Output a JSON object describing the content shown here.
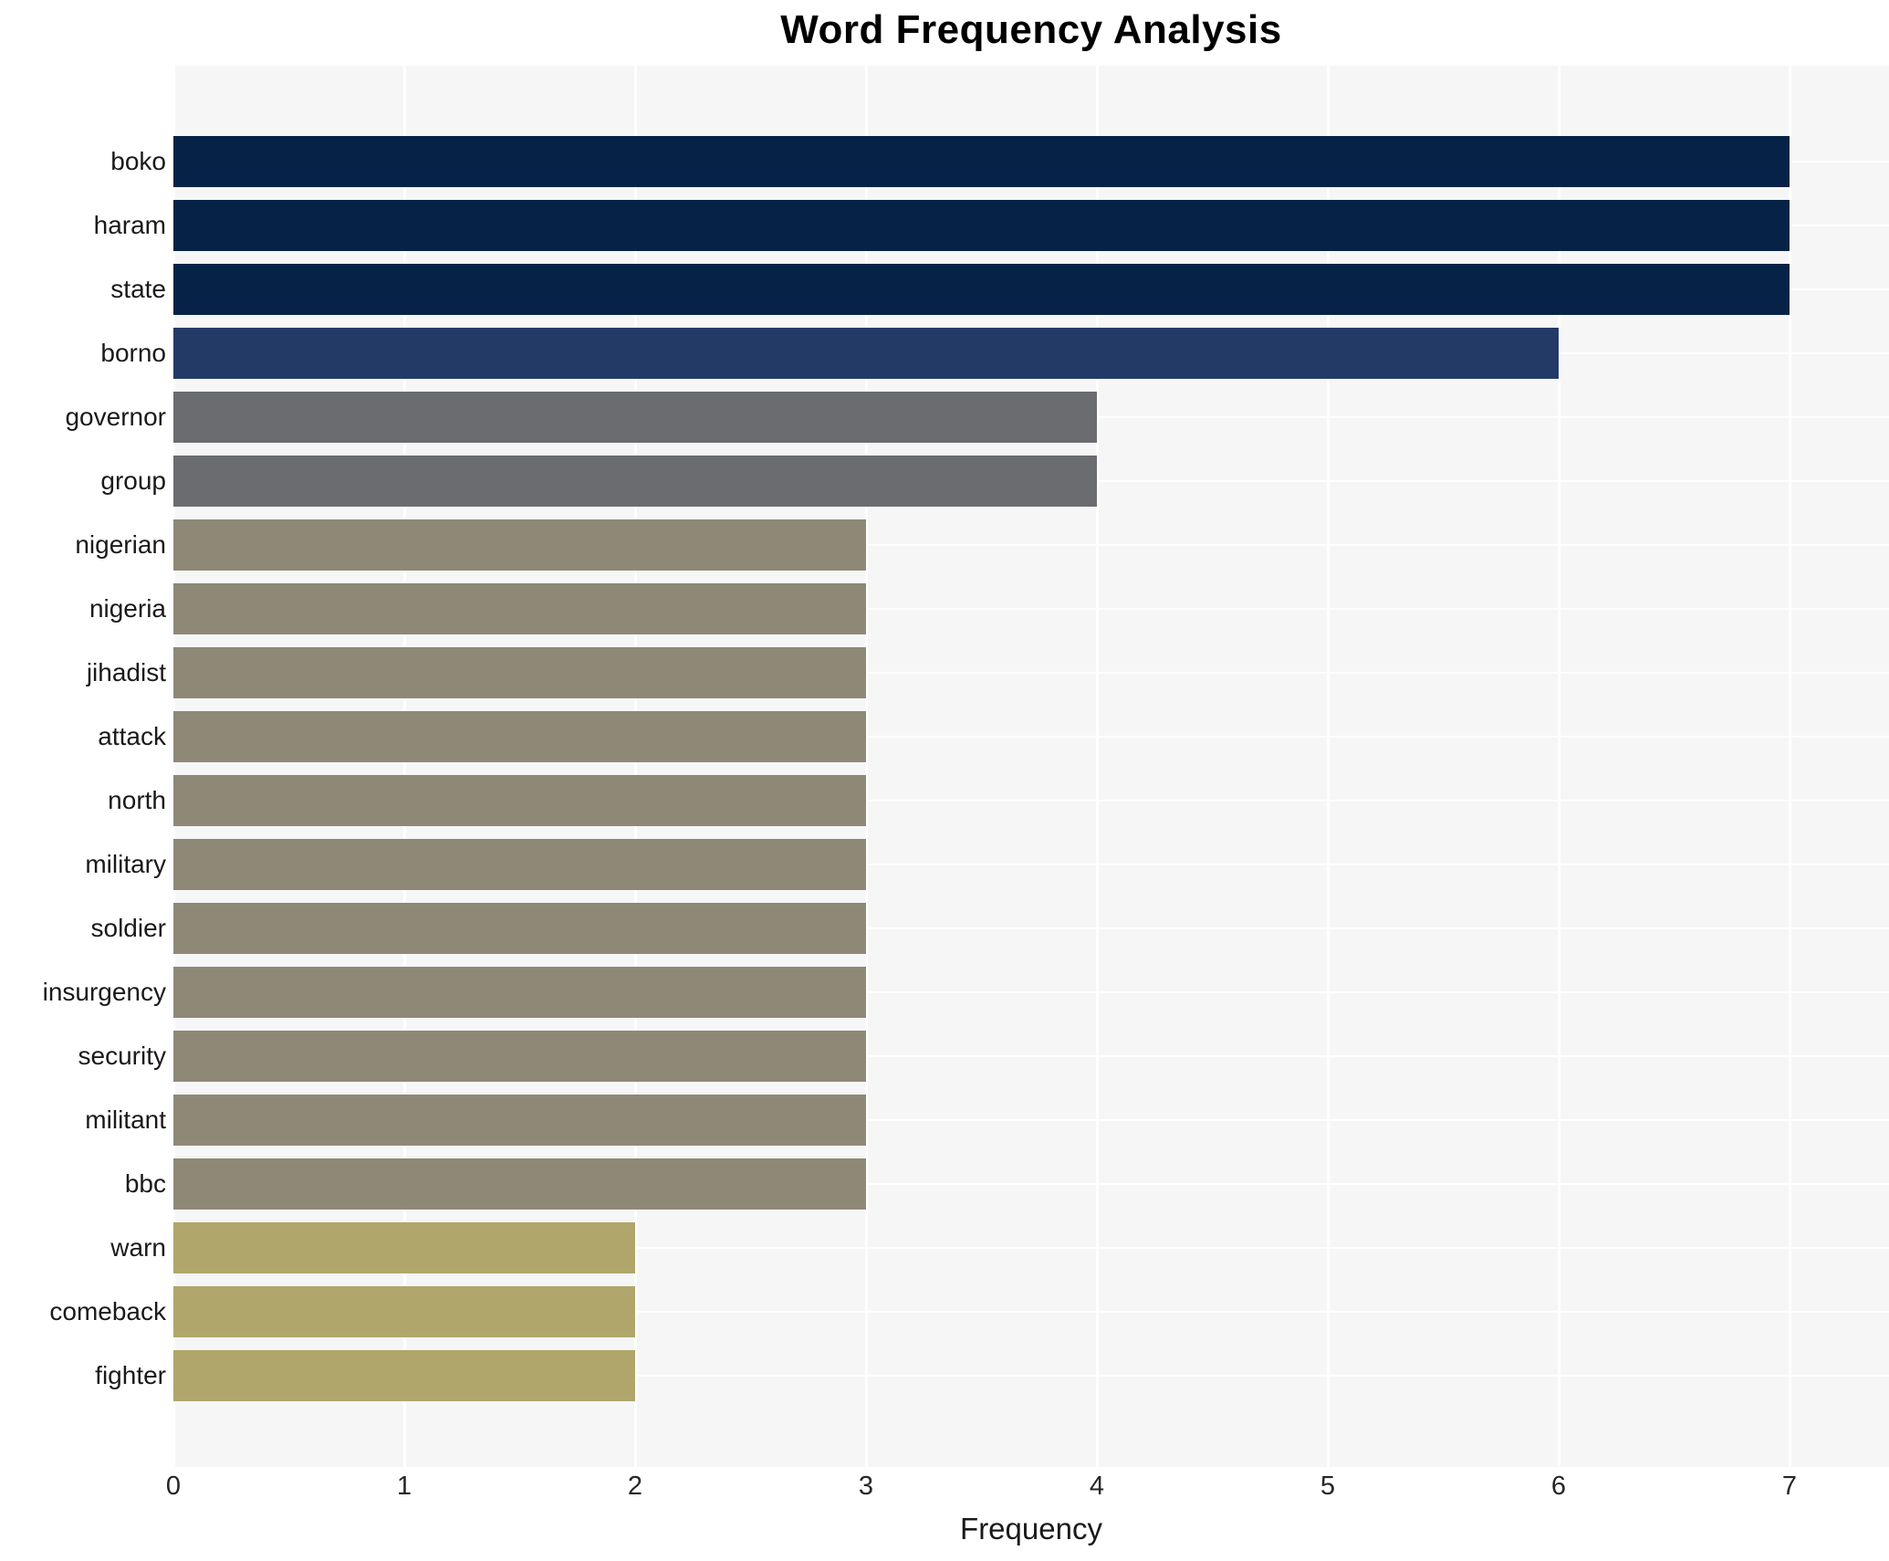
{
  "title": "Word Frequency Analysis",
  "chart_data": {
    "type": "bar",
    "orientation": "horizontal",
    "title": "Word Frequency Analysis",
    "xlabel": "Frequency",
    "ylabel": "",
    "categories": [
      "boko",
      "haram",
      "state",
      "borno",
      "governor",
      "group",
      "nigerian",
      "nigeria",
      "jihadist",
      "attack",
      "north",
      "military",
      "soldier",
      "insurgency",
      "security",
      "militant",
      "bbc",
      "warn",
      "comeback",
      "fighter"
    ],
    "values": [
      7,
      7,
      7,
      6,
      4,
      4,
      3,
      3,
      3,
      3,
      3,
      3,
      3,
      3,
      3,
      3,
      3,
      2,
      2,
      2
    ],
    "bar_colors": [
      "#062347",
      "#062347",
      "#062347",
      "#243a66",
      "#6b6c70",
      "#6b6c70",
      "#8e8976",
      "#8e8976",
      "#8e8976",
      "#8e8976",
      "#8e8976",
      "#8e8976",
      "#8e8976",
      "#8e8976",
      "#8e8976",
      "#8e8976",
      "#8e8976",
      "#b0a66b",
      "#b0a66b",
      "#b0a66b"
    ],
    "x_ticks": [
      0,
      1,
      2,
      3,
      4,
      5,
      6,
      7
    ],
    "xlim": [
      0,
      7.43
    ],
    "grid": true,
    "grid_color": "#ffffff",
    "plot_background": "#f6f6f6",
    "figure_background": "#ffffff",
    "legend": "none"
  }
}
